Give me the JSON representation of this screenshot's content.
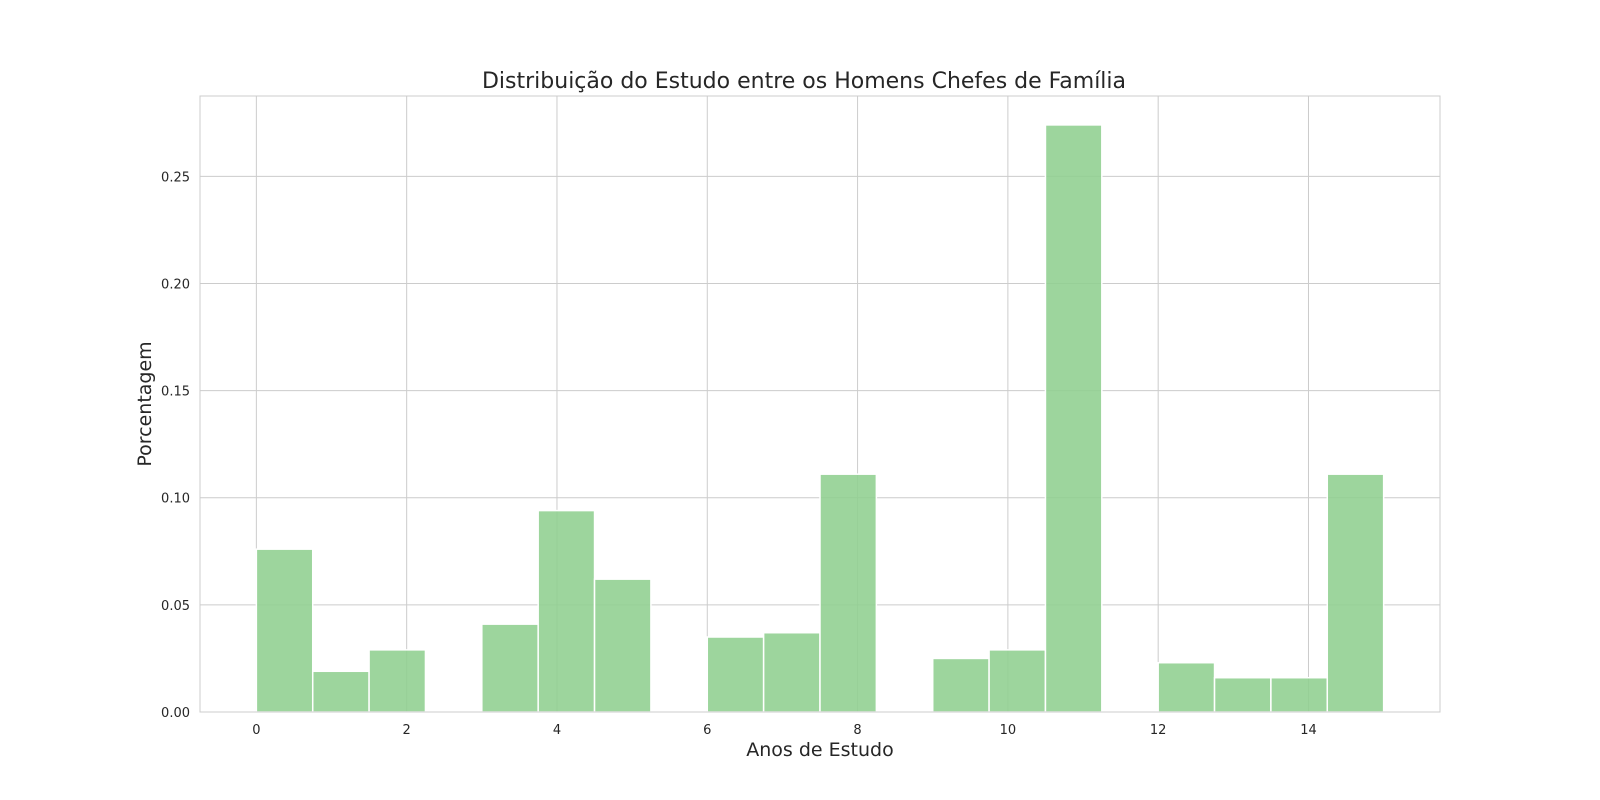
{
  "chart_data": {
    "type": "bar",
    "title": "Distribuição do Estudo entre os Homens Chefes de Família",
    "xlabel": "Anos de Estudo",
    "ylabel": "Porcentagem",
    "xlim": [
      -0.75,
      15.75
    ],
    "ylim": [
      0,
      0.2875
    ],
    "xticks": [
      0,
      2,
      4,
      6,
      8,
      10,
      12,
      14
    ],
    "xtick_labels": [
      "0",
      "2",
      "4",
      "6",
      "8",
      "10",
      "12",
      "14"
    ],
    "yticks": [
      0,
      0.05,
      0.1,
      0.15,
      0.2,
      0.25
    ],
    "ytick_labels": [
      "0.00",
      "0.05",
      "0.10",
      "0.15",
      "0.20",
      "0.25"
    ],
    "grid": true,
    "bar_color": "#8fcf8f",
    "bin_width": 0.75,
    "bins": [
      {
        "start": 0.0,
        "value": 0.076
      },
      {
        "start": 0.75,
        "value": 0.019
      },
      {
        "start": 1.5,
        "value": 0.029
      },
      {
        "start": 2.25,
        "value": 0.0
      },
      {
        "start": 3.0,
        "value": 0.041
      },
      {
        "start": 3.75,
        "value": 0.094
      },
      {
        "start": 4.5,
        "value": 0.062
      },
      {
        "start": 5.25,
        "value": 0.0
      },
      {
        "start": 6.0,
        "value": 0.035
      },
      {
        "start": 6.75,
        "value": 0.037
      },
      {
        "start": 7.5,
        "value": 0.111
      },
      {
        "start": 8.25,
        "value": 0.0
      },
      {
        "start": 9.0,
        "value": 0.025
      },
      {
        "start": 9.75,
        "value": 0.029
      },
      {
        "start": 10.5,
        "value": 0.274
      },
      {
        "start": 11.25,
        "value": 0.0
      },
      {
        "start": 12.0,
        "value": 0.023
      },
      {
        "start": 12.75,
        "value": 0.016
      },
      {
        "start": 13.5,
        "value": 0.016
      },
      {
        "start": 14.25,
        "value": 0.111
      }
    ]
  }
}
